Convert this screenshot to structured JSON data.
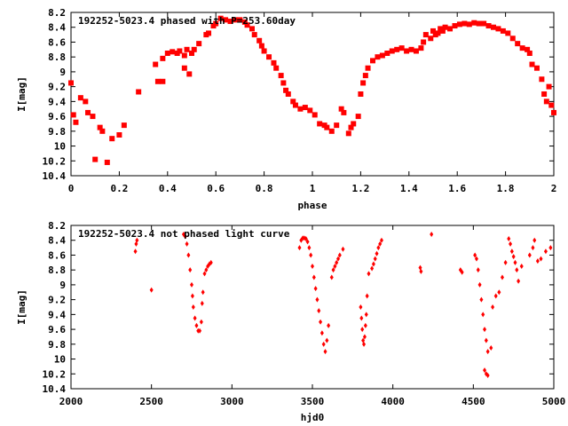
{
  "colors": {
    "points": "#ff0000",
    "axes": "#000000",
    "background": "#ffffff"
  },
  "chart_data": [
    {
      "type": "scatter",
      "title": "192252-5023.4 phased with P=253.60day",
      "xlabel": "phase",
      "ylabel": "I[mag]",
      "xlim": [
        0,
        2
      ],
      "ylim": [
        10.4,
        8.2
      ],
      "y_inverted": true,
      "x_ticks": [
        "0",
        "0.2",
        "0.4",
        "0.6",
        "0.8",
        "1",
        "1.2",
        "1.4",
        "1.6",
        "1.8",
        "2"
      ],
      "y_ticks": [
        "8.2",
        "8.4",
        "8.6",
        "8.8",
        "9",
        "9.2",
        "9.4",
        "9.6",
        "9.8",
        "10",
        "10.2",
        "10.4"
      ],
      "marker": "square",
      "series": [
        {
          "x": [
            0.0,
            0.01,
            0.02,
            0.04,
            0.06,
            0.07,
            0.09,
            0.1,
            0.12,
            0.13,
            0.15,
            0.17,
            0.2,
            0.22,
            0.28,
            0.35,
            0.36,
            0.38,
            0.38,
            0.4,
            0.42,
            0.44,
            0.45,
            0.47,
            0.47,
            0.48,
            0.49,
            0.5,
            0.51,
            0.53,
            0.56,
            0.57,
            0.59,
            0.6,
            0.62,
            0.64,
            0.66,
            0.68,
            0.7,
            0.72,
            0.73,
            0.75,
            0.76,
            0.78,
            0.79,
            0.8,
            0.82,
            0.84,
            0.85,
            0.87,
            0.88,
            0.89,
            0.9,
            0.92,
            0.93,
            0.95,
            0.97,
            0.99,
            1.01,
            1.03,
            1.05,
            1.06,
            1.08,
            1.1,
            1.12,
            1.13,
            1.15,
            1.16,
            1.17,
            1.19,
            1.2,
            1.21,
            1.22,
            1.23,
            1.25,
            1.27,
            1.29,
            1.31,
            1.33,
            1.35,
            1.37,
            1.39,
            1.41,
            1.43,
            1.45,
            1.46,
            1.47,
            1.49,
            1.5,
            1.51,
            1.52,
            1.53,
            1.54,
            1.55,
            1.57,
            1.59,
            1.61,
            1.63,
            1.65,
            1.67,
            1.69,
            1.71,
            1.73,
            1.75,
            1.77,
            1.79,
            1.81,
            1.83,
            1.85,
            1.87,
            1.89,
            1.9,
            1.91,
            1.93,
            1.95,
            1.96,
            1.97,
            1.98,
            1.99,
            2.0
          ],
          "y": [
            9.15,
            9.58,
            9.68,
            9.35,
            9.4,
            9.55,
            9.6,
            10.18,
            9.75,
            9.8,
            10.22,
            9.9,
            9.85,
            9.72,
            9.27,
            8.9,
            9.13,
            8.82,
            9.13,
            8.75,
            8.73,
            8.75,
            8.72,
            8.95,
            8.78,
            8.7,
            9.03,
            8.75,
            8.7,
            8.62,
            8.5,
            8.48,
            8.38,
            8.35,
            8.28,
            8.3,
            8.32,
            8.3,
            8.3,
            8.33,
            8.37,
            8.42,
            8.5,
            8.58,
            8.65,
            8.72,
            8.8,
            8.88,
            8.95,
            9.05,
            9.15,
            9.25,
            9.3,
            9.4,
            9.45,
            9.5,
            9.48,
            9.52,
            9.58,
            9.7,
            9.72,
            9.75,
            9.8,
            9.72,
            9.5,
            9.55,
            9.83,
            9.75,
            9.7,
            9.6,
            9.3,
            9.15,
            9.05,
            8.95,
            8.85,
            8.8,
            8.78,
            8.75,
            8.72,
            8.7,
            8.68,
            8.72,
            8.7,
            8.72,
            8.68,
            8.6,
            8.5,
            8.55,
            8.45,
            8.5,
            8.48,
            8.42,
            8.45,
            8.4,
            8.42,
            8.38,
            8.36,
            8.35,
            8.36,
            8.34,
            8.35,
            8.35,
            8.38,
            8.4,
            8.42,
            8.45,
            8.48,
            8.55,
            8.62,
            8.68,
            8.7,
            8.75,
            8.9,
            8.95,
            9.1,
            9.3,
            9.4,
            9.2,
            9.45,
            9.55
          ]
        }
      ]
    },
    {
      "type": "scatter",
      "title": "192252-5023.4 not phased light curve",
      "xlabel": "hjd0",
      "ylabel": "I[mag]",
      "xlim": [
        2000,
        5000
      ],
      "ylim": [
        10.4,
        8.2
      ],
      "y_inverted": true,
      "x_ticks": [
        "2000",
        "2500",
        "3000",
        "3500",
        "4000",
        "4500",
        "5000"
      ],
      "y_ticks": [
        "8.2",
        "8.4",
        "8.6",
        "8.8",
        "9",
        "9.2",
        "9.4",
        "9.6",
        "9.8",
        "10",
        "10.2",
        "10.4"
      ],
      "marker": "diamond",
      "series": [
        {
          "x": [
            2400,
            2405,
            2410,
            2500,
            2700,
            2710,
            2720,
            2730,
            2740,
            2750,
            2755,
            2760,
            2770,
            2780,
            2790,
            2800,
            2810,
            2815,
            2820,
            2830,
            2840,
            2850,
            2860,
            2870,
            3420,
            3430,
            3440,
            3450,
            3460,
            3470,
            3480,
            3490,
            3500,
            3510,
            3520,
            3530,
            3540,
            3550,
            3560,
            3570,
            3580,
            3590,
            3600,
            3620,
            3630,
            3640,
            3650,
            3660,
            3670,
            3690,
            3800,
            3805,
            3810,
            3815,
            3820,
            3825,
            3830,
            3835,
            3840,
            3850,
            3870,
            3880,
            3890,
            3900,
            3910,
            3920,
            3930,
            4170,
            4175,
            4240,
            4420,
            4430,
            4510,
            4520,
            4530,
            4540,
            4550,
            4560,
            4570,
            4580,
            4590,
            4610,
            4620,
            4640,
            4660,
            4680,
            4700,
            4720,
            4730,
            4740,
            4750,
            4760,
            4770,
            4780,
            4800,
            4850,
            4870,
            4880,
            4900,
            4920,
            4950,
            4980
          ],
          "y": [
            8.55,
            8.45,
            8.4,
            9.07,
            8.32,
            8.35,
            8.45,
            8.6,
            8.8,
            9.0,
            9.15,
            9.3,
            9.45,
            9.55,
            9.62,
            9.62,
            9.5,
            9.25,
            9.1,
            8.85,
            8.8,
            8.75,
            8.72,
            8.7,
            8.5,
            8.4,
            8.37,
            8.37,
            8.38,
            8.42,
            8.5,
            8.6,
            8.75,
            8.9,
            9.05,
            9.2,
            9.35,
            9.5,
            9.65,
            9.8,
            9.9,
            9.75,
            9.55,
            8.9,
            8.8,
            8.75,
            8.7,
            8.65,
            8.6,
            8.52,
            9.3,
            9.45,
            9.6,
            9.75,
            9.8,
            9.7,
            9.55,
            9.4,
            9.15,
            8.85,
            8.78,
            8.72,
            8.65,
            8.58,
            8.5,
            8.45,
            8.4,
            8.77,
            8.82,
            8.32,
            8.8,
            8.83,
            8.6,
            8.65,
            8.8,
            9.0,
            9.2,
            9.4,
            9.6,
            9.75,
            9.9,
            9.85,
            9.3,
            9.15,
            9.1,
            8.9,
            8.7,
            8.38,
            8.45,
            8.55,
            8.62,
            8.7,
            8.8,
            8.95,
            8.75,
            8.6,
            8.5,
            8.4,
            8.68,
            8.65,
            8.55,
            8.5
          ]
        },
        {
          "x": [
            4570,
            4580,
            4590
          ],
          "y": [
            10.15,
            10.2,
            10.22
          ]
        }
      ]
    }
  ]
}
